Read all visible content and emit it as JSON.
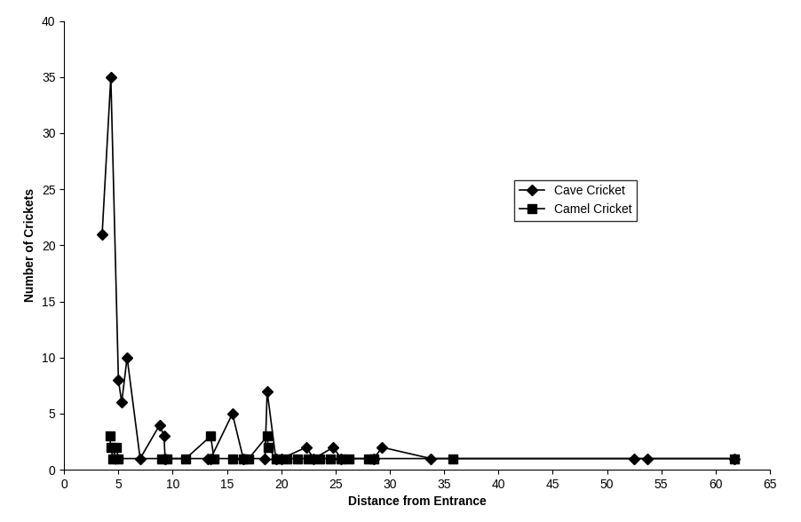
{
  "chart_data": {
    "type": "line",
    "x_label": "Distance from Entrance",
    "y_label": "Number of Crickets",
    "xlim": [
      0,
      65
    ],
    "xticks": [
      0,
      5,
      10,
      15,
      20,
      25,
      30,
      35,
      40,
      45,
      50,
      55,
      60,
      65
    ],
    "ylim": [
      0,
      40
    ],
    "yticks": [
      0,
      5,
      10,
      15,
      20,
      25,
      30,
      35,
      40
    ],
    "grid": false,
    "legend": "center right",
    "series": [
      {
        "name": "Cave Cricket",
        "color": "#000000",
        "marker": "diamond",
        "line_style": "solid",
        "x": [
          3.5,
          4.3,
          5.0,
          5.3,
          5.8,
          7.0,
          8.8,
          9.2,
          9.3,
          13.2,
          13.5,
          15.5,
          16.5,
          18.5,
          18.7,
          19.5,
          20.0,
          22.3,
          23.0,
          24.8,
          25.5,
          28.5,
          29.3,
          33.8,
          52.5,
          53.7,
          61.7
        ],
        "values": [
          21,
          35,
          8,
          6,
          10,
          1,
          4,
          3,
          1,
          1,
          1,
          5,
          1,
          1,
          7,
          1,
          1,
          2,
          1,
          2,
          1,
          1,
          2,
          1,
          1,
          1,
          1
        ]
      },
      {
        "name": "Camel Cricket",
        "color": "#000000",
        "marker": "square",
        "line_style": "solid",
        "x": [
          4.2,
          4.3,
          4.5,
          4.8,
          5.0,
          9.0,
          9.5,
          11.2,
          13.5,
          13.8,
          15.5,
          16.5,
          17.0,
          18.7,
          18.8,
          19.5,
          20.5,
          21.5,
          22.5,
          23.5,
          24.5,
          25.5,
          26.2,
          28.0,
          28.5,
          35.8,
          61.7
        ],
        "values": [
          3,
          2,
          1,
          2,
          1,
          1,
          1,
          1,
          3,
          1,
          1,
          1,
          1,
          3,
          2,
          1,
          1,
          1,
          1,
          1,
          1,
          1,
          1,
          1,
          1,
          1,
          1
        ]
      }
    ]
  }
}
